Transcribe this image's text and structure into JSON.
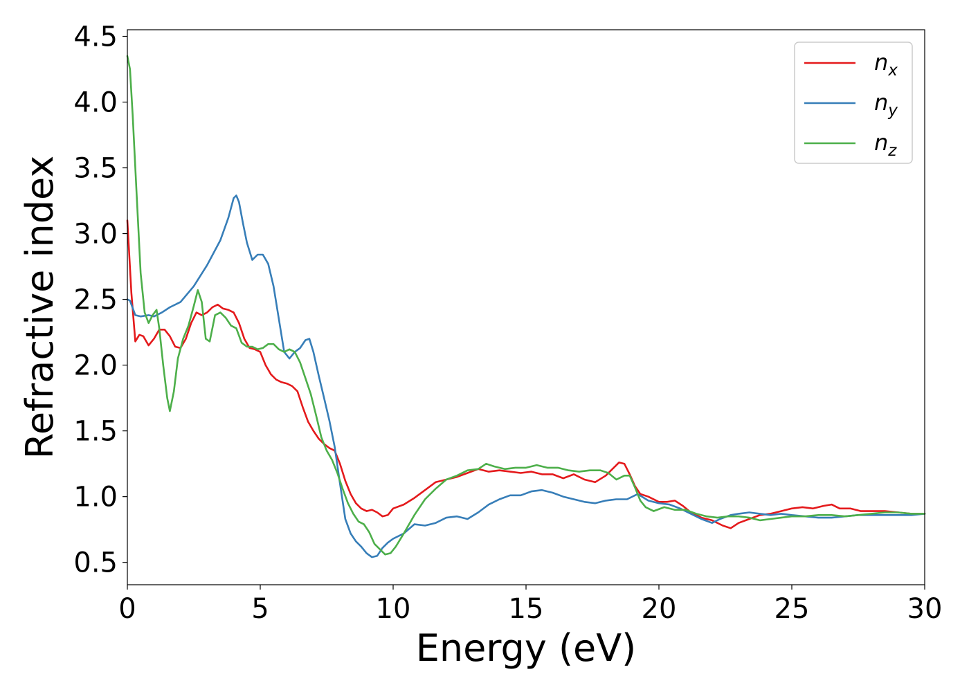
{
  "chart_data": {
    "type": "line",
    "title": "",
    "xlabel": "Energy (eV)",
    "ylabel": "Refractive index",
    "xlim": [
      0,
      30
    ],
    "ylim": [
      0.33,
      4.55
    ],
    "xticks": [
      0,
      5,
      10,
      15,
      20,
      25,
      30
    ],
    "xtick_labels": [
      "0",
      "5",
      "10",
      "15",
      "20",
      "25",
      "30"
    ],
    "yticks": [
      0.5,
      1.0,
      1.5,
      2.0,
      2.5,
      3.0,
      3.5,
      4.0,
      4.5
    ],
    "ytick_labels": [
      "0.5",
      "1.0",
      "1.5",
      "2.0",
      "2.5",
      "3.0",
      "3.5",
      "4.0",
      "4.5"
    ],
    "grid": false,
    "legend": "top-right",
    "series": [
      {
        "name": "n",
        "subscript": "x",
        "color": "#e41a1c",
        "x": [
          0,
          0.15,
          0.3,
          0.45,
          0.6,
          0.8,
          1.0,
          1.2,
          1.4,
          1.6,
          1.8,
          2.0,
          2.2,
          2.4,
          2.6,
          2.8,
          3.0,
          3.2,
          3.4,
          3.6,
          3.8,
          4.0,
          4.2,
          4.4,
          4.6,
          4.8,
          5.0,
          5.2,
          5.4,
          5.6,
          5.8,
          6.0,
          6.2,
          6.4,
          6.6,
          6.8,
          7.0,
          7.2,
          7.4,
          7.6,
          7.8,
          8.0,
          8.2,
          8.4,
          8.6,
          8.8,
          9.0,
          9.2,
          9.4,
          9.6,
          9.8,
          10.0,
          10.4,
          10.8,
          11.2,
          11.6,
          12.0,
          12.4,
          12.8,
          13.2,
          13.6,
          14.0,
          14.4,
          14.8,
          15.2,
          15.6,
          16.0,
          16.4,
          16.8,
          17.2,
          17.6,
          18.0,
          18.3,
          18.5,
          18.7,
          18.9,
          19.1,
          19.3,
          19.6,
          20.0,
          20.3,
          20.6,
          20.9,
          21.2,
          21.6,
          22.0,
          22.4,
          22.7,
          23.0,
          23.4,
          23.8,
          24.2,
          24.6,
          25.0,
          25.4,
          25.8,
          26.2,
          26.5,
          26.8,
          27.2,
          27.6,
          28.0,
          28.5,
          29.0,
          29.5,
          30.0
        ],
        "y": [
          3.1,
          2.55,
          2.18,
          2.23,
          2.22,
          2.15,
          2.2,
          2.27,
          2.27,
          2.22,
          2.14,
          2.13,
          2.2,
          2.32,
          2.4,
          2.38,
          2.4,
          2.44,
          2.46,
          2.43,
          2.42,
          2.4,
          2.32,
          2.2,
          2.13,
          2.12,
          2.1,
          2.0,
          1.93,
          1.89,
          1.87,
          1.86,
          1.84,
          1.8,
          1.68,
          1.57,
          1.5,
          1.44,
          1.4,
          1.37,
          1.35,
          1.25,
          1.12,
          1.02,
          0.95,
          0.91,
          0.89,
          0.9,
          0.88,
          0.85,
          0.86,
          0.91,
          0.94,
          0.99,
          1.05,
          1.11,
          1.13,
          1.15,
          1.18,
          1.21,
          1.19,
          1.2,
          1.19,
          1.18,
          1.19,
          1.17,
          1.17,
          1.14,
          1.17,
          1.13,
          1.11,
          1.16,
          1.22,
          1.26,
          1.25,
          1.17,
          1.08,
          1.02,
          1.0,
          0.96,
          0.96,
          0.97,
          0.93,
          0.88,
          0.84,
          0.82,
          0.78,
          0.76,
          0.8,
          0.83,
          0.86,
          0.87,
          0.89,
          0.91,
          0.92,
          0.91,
          0.93,
          0.94,
          0.91,
          0.91,
          0.89,
          0.89,
          0.89,
          0.88,
          0.87,
          0.87
        ]
      },
      {
        "name": "n",
        "subscript": "y",
        "color": "#377eb8",
        "x": [
          0,
          0.1,
          0.3,
          0.5,
          0.8,
          1.0,
          1.3,
          1.6,
          2.0,
          2.5,
          3.0,
          3.5,
          3.8,
          4.0,
          4.1,
          4.2,
          4.35,
          4.5,
          4.7,
          4.9,
          5.1,
          5.3,
          5.5,
          5.7,
          5.9,
          6.1,
          6.3,
          6.5,
          6.7,
          6.85,
          7.0,
          7.2,
          7.4,
          7.6,
          7.8,
          8.0,
          8.2,
          8.4,
          8.6,
          8.8,
          9.0,
          9.2,
          9.4,
          9.6,
          9.8,
          10.0,
          10.4,
          10.8,
          11.2,
          11.6,
          12.0,
          12.4,
          12.8,
          13.2,
          13.6,
          14.0,
          14.4,
          14.8,
          15.2,
          15.6,
          16.0,
          16.4,
          16.8,
          17.2,
          17.6,
          18.0,
          18.4,
          18.8,
          19.2,
          19.6,
          20.0,
          20.4,
          20.8,
          21.2,
          21.6,
          22.0,
          22.3,
          22.7,
          23.0,
          23.4,
          23.8,
          24.2,
          24.6,
          25.0,
          25.5,
          26.0,
          26.5,
          27.0,
          27.5,
          28.0,
          28.5,
          29.0,
          29.5,
          30.0
        ],
        "y": [
          2.5,
          2.49,
          2.38,
          2.37,
          2.38,
          2.37,
          2.4,
          2.44,
          2.48,
          2.6,
          2.76,
          2.95,
          3.12,
          3.27,
          3.29,
          3.24,
          3.08,
          2.93,
          2.8,
          2.84,
          2.84,
          2.77,
          2.6,
          2.35,
          2.1,
          2.05,
          2.1,
          2.13,
          2.19,
          2.2,
          2.1,
          1.92,
          1.75,
          1.58,
          1.38,
          1.1,
          0.83,
          0.72,
          0.66,
          0.62,
          0.57,
          0.54,
          0.55,
          0.61,
          0.65,
          0.68,
          0.72,
          0.79,
          0.78,
          0.8,
          0.84,
          0.85,
          0.83,
          0.88,
          0.94,
          0.98,
          1.01,
          1.01,
          1.04,
          1.05,
          1.03,
          1.0,
          0.98,
          0.96,
          0.95,
          0.97,
          0.98,
          0.98,
          1.02,
          0.97,
          0.95,
          0.94,
          0.91,
          0.87,
          0.83,
          0.8,
          0.83,
          0.86,
          0.87,
          0.88,
          0.87,
          0.86,
          0.87,
          0.86,
          0.85,
          0.84,
          0.84,
          0.85,
          0.86,
          0.86,
          0.86,
          0.86,
          0.86,
          0.87
        ]
      },
      {
        "name": "n",
        "subscript": "z",
        "color": "#4daf4a",
        "x": [
          0,
          0.1,
          0.2,
          0.35,
          0.5,
          0.65,
          0.8,
          0.95,
          1.1,
          1.2,
          1.35,
          1.5,
          1.6,
          1.75,
          1.9,
          2.1,
          2.3,
          2.5,
          2.65,
          2.8,
          2.95,
          3.1,
          3.3,
          3.5,
          3.7,
          3.9,
          4.1,
          4.3,
          4.5,
          4.7,
          4.9,
          5.1,
          5.3,
          5.5,
          5.7,
          5.9,
          6.1,
          6.3,
          6.5,
          6.7,
          6.9,
          7.1,
          7.3,
          7.5,
          7.7,
          7.9,
          8.1,
          8.3,
          8.5,
          8.7,
          8.9,
          9.1,
          9.3,
          9.5,
          9.7,
          9.9,
          10.1,
          10.4,
          10.8,
          11.2,
          11.6,
          12.0,
          12.4,
          12.8,
          13.2,
          13.5,
          13.8,
          14.2,
          14.6,
          15.0,
          15.4,
          15.8,
          16.2,
          16.6,
          17.0,
          17.4,
          17.8,
          18.1,
          18.4,
          18.7,
          18.9,
          19.1,
          19.3,
          19.5,
          19.8,
          20.2,
          20.6,
          21.0,
          21.4,
          21.8,
          22.2,
          22.6,
          23.0,
          23.4,
          23.8,
          24.2,
          24.6,
          25.0,
          25.5,
          26.0,
          26.5,
          27.0,
          27.5,
          28.0,
          28.5,
          29.0,
          29.5,
          30.0
        ],
        "y": [
          4.35,
          4.25,
          3.9,
          3.3,
          2.7,
          2.4,
          2.32,
          2.38,
          2.42,
          2.28,
          2.0,
          1.75,
          1.65,
          1.8,
          2.05,
          2.2,
          2.3,
          2.45,
          2.57,
          2.48,
          2.2,
          2.18,
          2.38,
          2.4,
          2.36,
          2.3,
          2.28,
          2.17,
          2.14,
          2.14,
          2.12,
          2.13,
          2.16,
          2.16,
          2.12,
          2.1,
          2.12,
          2.1,
          2.02,
          1.9,
          1.78,
          1.62,
          1.45,
          1.35,
          1.28,
          1.18,
          1.06,
          0.95,
          0.87,
          0.81,
          0.79,
          0.73,
          0.64,
          0.6,
          0.56,
          0.57,
          0.62,
          0.72,
          0.86,
          0.98,
          1.06,
          1.13,
          1.16,
          1.2,
          1.21,
          1.25,
          1.23,
          1.21,
          1.22,
          1.22,
          1.24,
          1.22,
          1.22,
          1.2,
          1.19,
          1.2,
          1.2,
          1.18,
          1.13,
          1.16,
          1.16,
          1.07,
          0.97,
          0.92,
          0.89,
          0.92,
          0.9,
          0.9,
          0.87,
          0.85,
          0.84,
          0.85,
          0.85,
          0.84,
          0.82,
          0.83,
          0.84,
          0.85,
          0.85,
          0.86,
          0.86,
          0.85,
          0.86,
          0.87,
          0.88,
          0.88,
          0.87,
          0.87
        ]
      }
    ]
  }
}
